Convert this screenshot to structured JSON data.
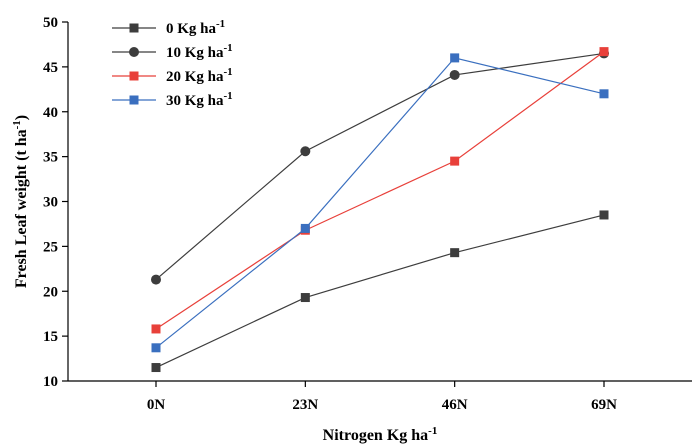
{
  "chart_data": {
    "type": "line",
    "categories": [
      "0N",
      "23N",
      "46N",
      "69N"
    ],
    "xlabel": "Nitrogen Kg ha",
    "xlabel_sup": "-1",
    "ylabel": "Fresh Leaf weight (t ha",
    "ylabel_sup": "-1",
    "ylabel_end": ")",
    "ylim": [
      10,
      50
    ],
    "yticks": [
      10,
      15,
      20,
      25,
      30,
      35,
      40,
      45,
      50
    ],
    "grid": false,
    "legend_position": "top-left",
    "series": [
      {
        "name": "0 Kg ha",
        "name_sup": "-1",
        "marker": "square",
        "color": "#3d3d3d",
        "values": [
          11.5,
          19.3,
          24.3,
          28.5
        ]
      },
      {
        "name": "10 Kg ha",
        "name_sup": "-1",
        "marker": "circle",
        "color": "#3d3d3d",
        "values": [
          21.3,
          35.6,
          44.1,
          46.5
        ]
      },
      {
        "name": "20 Kg ha",
        "name_sup": "-1",
        "marker": "square",
        "color": "#e8403a",
        "values": [
          15.8,
          26.8,
          34.5,
          46.7
        ]
      },
      {
        "name": "30 Kg ha",
        "name_sup": "-1",
        "marker": "square",
        "color": "#3a6fbf",
        "values": [
          13.7,
          27.0,
          46.0,
          42.0
        ]
      }
    ]
  }
}
